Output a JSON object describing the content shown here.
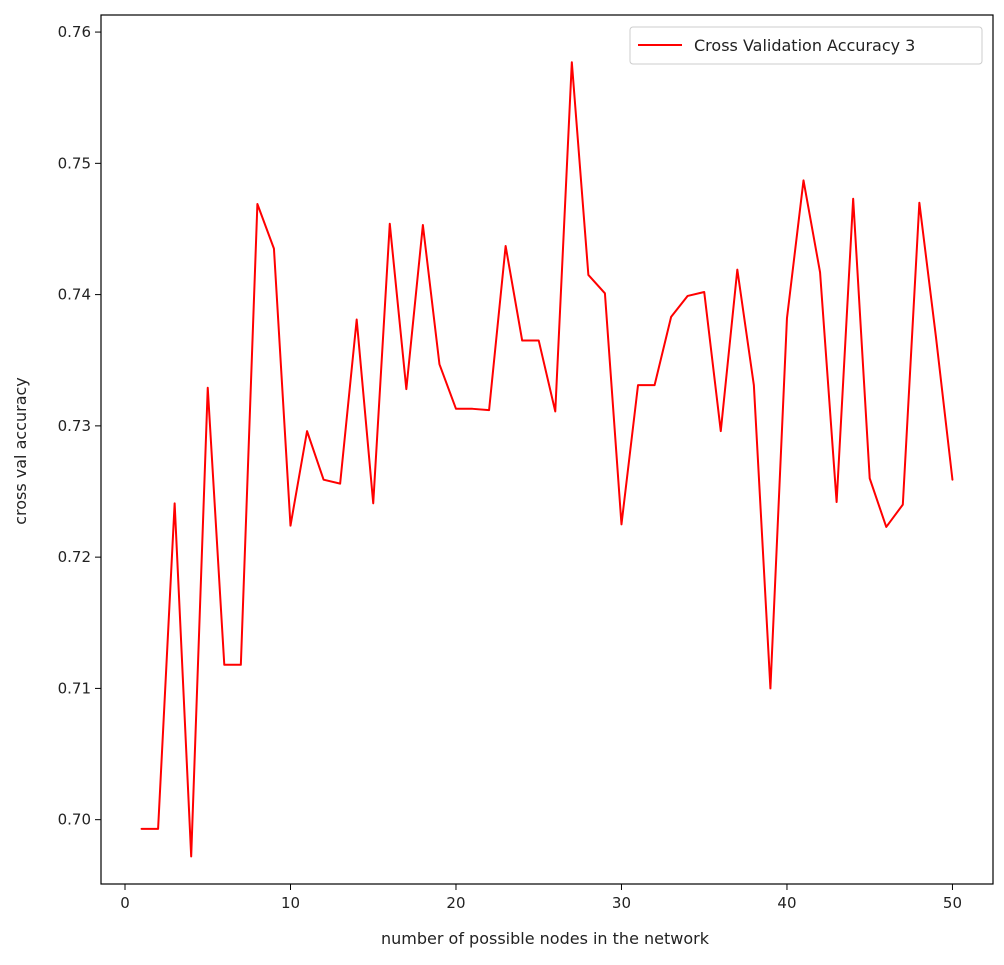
{
  "chart_data": {
    "type": "line",
    "title": "",
    "xlabel": "number of possible nodes in the network",
    "ylabel": "cross val accuracy",
    "xlim": [
      -1.45,
      52.45
    ],
    "ylim": [
      0.6951,
      0.7613
    ],
    "xticks": [
      0,
      10,
      20,
      30,
      40,
      50
    ],
    "xtick_labels": [
      "0",
      "10",
      "20",
      "30",
      "40",
      "50"
    ],
    "yticks": [
      0.7,
      0.71,
      0.72,
      0.73,
      0.74,
      0.75,
      0.76
    ],
    "ytick_labels": [
      "0.70",
      "0.71",
      "0.72",
      "0.73",
      "0.74",
      "0.75",
      "0.76"
    ],
    "grid": false,
    "legend_position": "top-right",
    "series": [
      {
        "name": "Cross Validation Accuracy 3",
        "color": "#ff0000",
        "x": [
          1,
          2,
          3,
          4,
          5,
          6,
          7,
          8,
          9,
          10,
          11,
          12,
          13,
          14,
          15,
          16,
          17,
          18,
          19,
          20,
          21,
          22,
          23,
          24,
          25,
          26,
          27,
          28,
          29,
          30,
          31,
          32,
          33,
          34,
          35,
          36,
          37,
          38,
          39,
          40,
          41,
          42,
          43,
          44,
          45,
          46,
          47,
          48,
          49,
          50
        ],
        "y": [
          0.6993,
          0.6993,
          0.7241,
          0.6972,
          0.7329,
          0.7118,
          0.7118,
          0.7469,
          0.7435,
          0.7224,
          0.7296,
          0.7259,
          0.7256,
          0.7381,
          0.7241,
          0.7454,
          0.7328,
          0.7453,
          0.7347,
          0.7313,
          0.7313,
          0.7312,
          0.7437,
          0.7365,
          0.7365,
          0.7311,
          0.7577,
          0.7415,
          0.7401,
          0.7225,
          0.7331,
          0.7331,
          0.7383,
          0.7399,
          0.7402,
          0.7296,
          0.7419,
          0.7331,
          0.71,
          0.7382,
          0.7487,
          0.7417,
          0.7242,
          0.7473,
          0.726,
          0.7223,
          0.724,
          0.747,
          0.7368,
          0.7259
        ]
      }
    ]
  }
}
